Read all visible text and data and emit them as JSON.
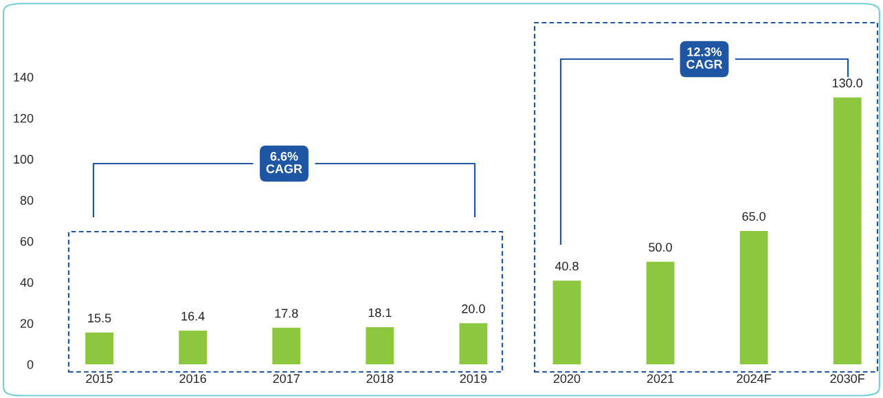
{
  "chart_data": {
    "type": "bar",
    "categories": [
      "2015",
      "2016",
      "2017",
      "2018",
      "2019",
      "2020",
      "2021",
      "2024F",
      "2030F"
    ],
    "values": [
      15.5,
      16.4,
      17.8,
      18.1,
      20.0,
      40.8,
      50.0,
      65.0,
      130.0
    ],
    "color": "#8dc63f",
    "value_labels": [
      "15.5",
      "16.4",
      "17.8",
      "18.1",
      "20.0",
      "40.8",
      "50.0",
      "65.0",
      "130.0"
    ],
    "ylim": [
      0,
      140
    ],
    "yticks": [
      0,
      20,
      40,
      60,
      80,
      100,
      120,
      140
    ],
    "grid": false,
    "legend": false,
    "annotations": [
      "6.6%\nCAGR",
      "12.3%\nCAGR"
    ]
  }
}
